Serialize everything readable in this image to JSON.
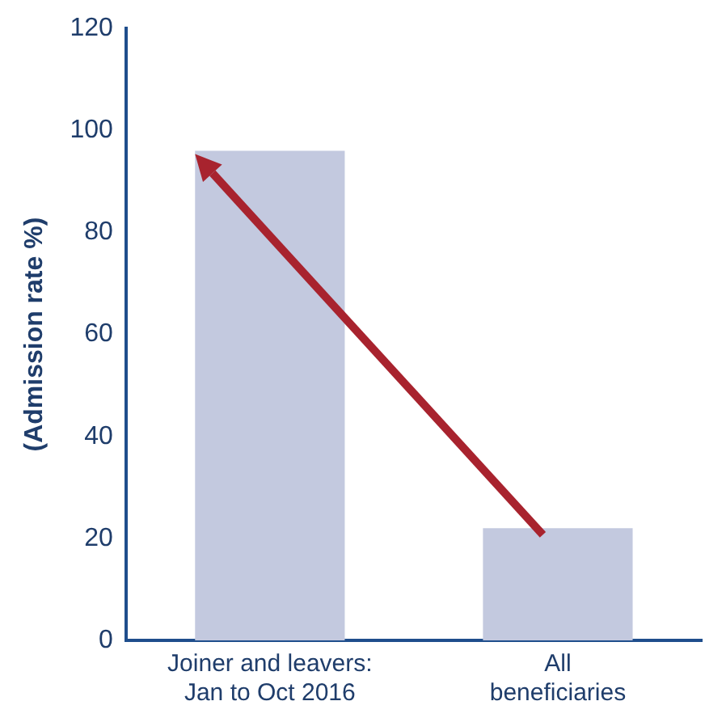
{
  "chart_data": {
    "type": "bar",
    "ylabel": "(Admission rate %)",
    "categories": [
      "Joiner and leavers:\nJan to Oct 2016",
      "All\nbeneficiaries"
    ],
    "values": [
      96,
      22
    ],
    "color": "#c3c9df",
    "ylim": [
      0,
      120
    ],
    "yticks": [
      0,
      20,
      40,
      60,
      80,
      100,
      120
    ],
    "grid": false,
    "legend": false
  }
}
